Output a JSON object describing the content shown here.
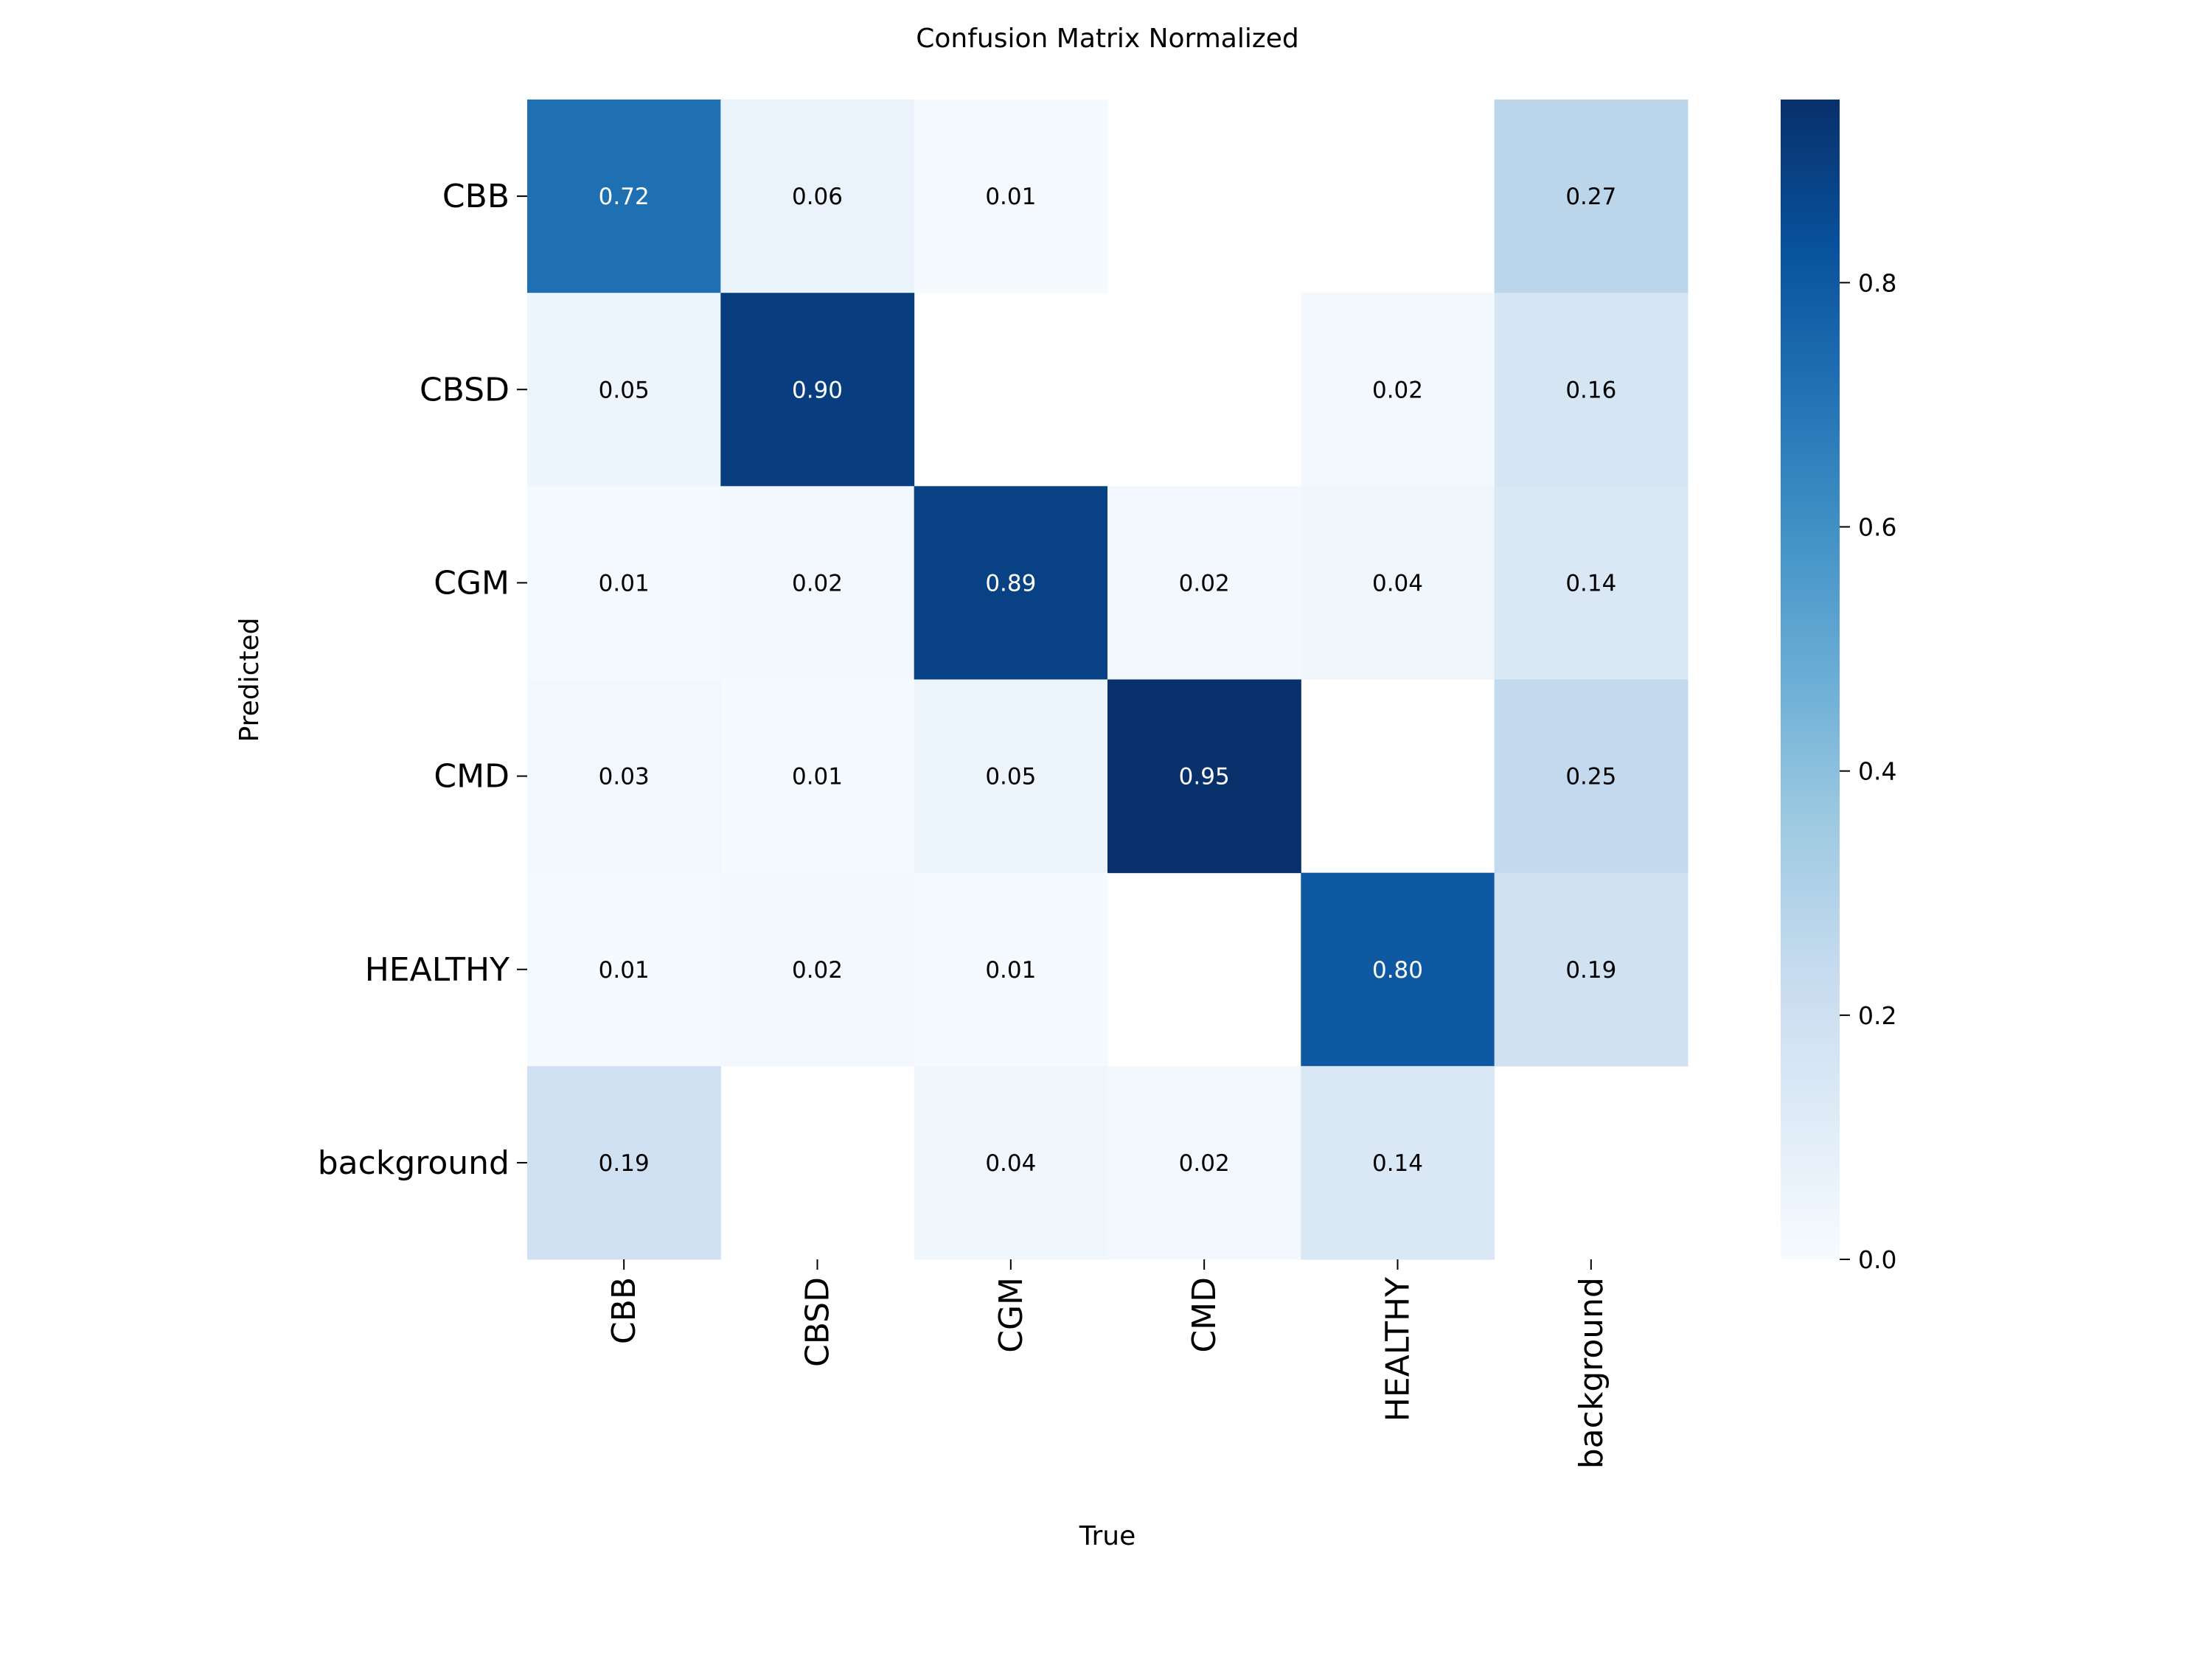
{
  "chart_data": {
    "type": "heatmap",
    "title": "Confusion Matrix Normalized",
    "xlabel": "True",
    "ylabel": "Predicted",
    "x_categories": [
      "CBB",
      "CBSD",
      "CGM",
      "CMD",
      "HEALTHY",
      "background"
    ],
    "y_categories": [
      "CBB",
      "CBSD",
      "CGM",
      "CMD",
      "HEALTHY",
      "background"
    ],
    "values": [
      [
        0.72,
        0.06,
        0.01,
        null,
        null,
        0.27
      ],
      [
        0.05,
        0.9,
        null,
        null,
        0.02,
        0.16
      ],
      [
        0.01,
        0.02,
        0.89,
        0.02,
        0.04,
        0.14
      ],
      [
        0.03,
        0.01,
        0.05,
        0.95,
        null,
        0.25
      ],
      [
        0.01,
        0.02,
        0.01,
        null,
        0.8,
        0.19
      ],
      [
        0.19,
        null,
        0.04,
        0.02,
        0.14,
        null
      ]
    ],
    "colormap": "Blues",
    "colorbar": {
      "range": [
        0.0,
        0.95
      ],
      "ticks": [
        "0.0",
        "0.2",
        "0.4",
        "0.6",
        "0.8"
      ]
    },
    "grid": false
  }
}
